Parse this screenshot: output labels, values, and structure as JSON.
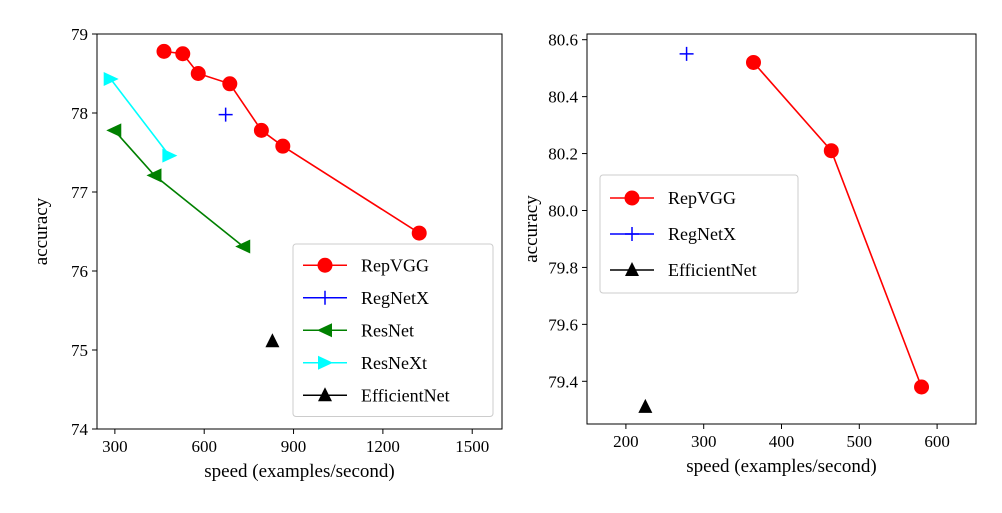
{
  "chart_data": [
    {
      "type": "line",
      "xlabel": "speed (examples/second)",
      "ylabel": "accuracy",
      "xlim": [
        240,
        1600
      ],
      "ylim": [
        74,
        79
      ],
      "xticks": [
        300,
        600,
        900,
        1200,
        1500
      ],
      "yticks": [
        74,
        75,
        76,
        77,
        78,
        79
      ],
      "legend_position": "lower-right",
      "series": [
        {
          "name": "RepVGG",
          "color": "#ff0000",
          "marker": "circle",
          "line": true,
          "x": [
            465,
            528,
            580,
            686,
            792,
            864,
            1322
          ],
          "y": [
            78.78,
            78.75,
            78.5,
            78.37,
            77.78,
            77.58,
            76.48
          ]
        },
        {
          "name": "RegNetX",
          "color": "#0000ff",
          "marker": "plus",
          "line": false,
          "x": [
            672
          ],
          "y": [
            77.98
          ]
        },
        {
          "name": "ResNet",
          "color": "#008000",
          "marker": "triangle-left",
          "line": true,
          "x": [
            298,
            433,
            731
          ],
          "y": [
            77.78,
            77.21,
            76.31
          ]
        },
        {
          "name": "ResNeXt",
          "color": "#00ffff",
          "marker": "triangle-right",
          "line": true,
          "x": [
            286,
            483
          ],
          "y": [
            78.43,
            77.46
          ]
        },
        {
          "name": "EfficientNet",
          "color": "#000000",
          "marker": "triangle-up",
          "line": false,
          "x": [
            829
          ],
          "y": [
            75.11
          ]
        }
      ]
    },
    {
      "type": "line",
      "xlabel": "speed (examples/second)",
      "ylabel": "accuracy",
      "xlim": [
        150,
        650
      ],
      "ylim": [
        79.25,
        80.62
      ],
      "xticks": [
        200,
        300,
        400,
        500,
        600
      ],
      "yticks": [
        79.4,
        79.6,
        79.8,
        80.0,
        80.2,
        80.4,
        80.6
      ],
      "ytick_labels": [
        "79.4",
        "79.6",
        "79.8",
        "80.0",
        "80.2",
        "80.4",
        "80.6"
      ],
      "legend_position": "center-left",
      "series": [
        {
          "name": "RepVGG",
          "color": "#ff0000",
          "marker": "circle",
          "line": true,
          "x": [
            364,
            464,
            580
          ],
          "y": [
            80.52,
            80.21,
            79.38
          ]
        },
        {
          "name": "RegNetX",
          "color": "#0000ff",
          "marker": "plus",
          "line": false,
          "x": [
            278
          ],
          "y": [
            80.55
          ]
        },
        {
          "name": "EfficientNet",
          "color": "#000000",
          "marker": "triangle-up",
          "line": false,
          "x": [
            225
          ],
          "y": [
            79.31
          ]
        }
      ]
    }
  ]
}
